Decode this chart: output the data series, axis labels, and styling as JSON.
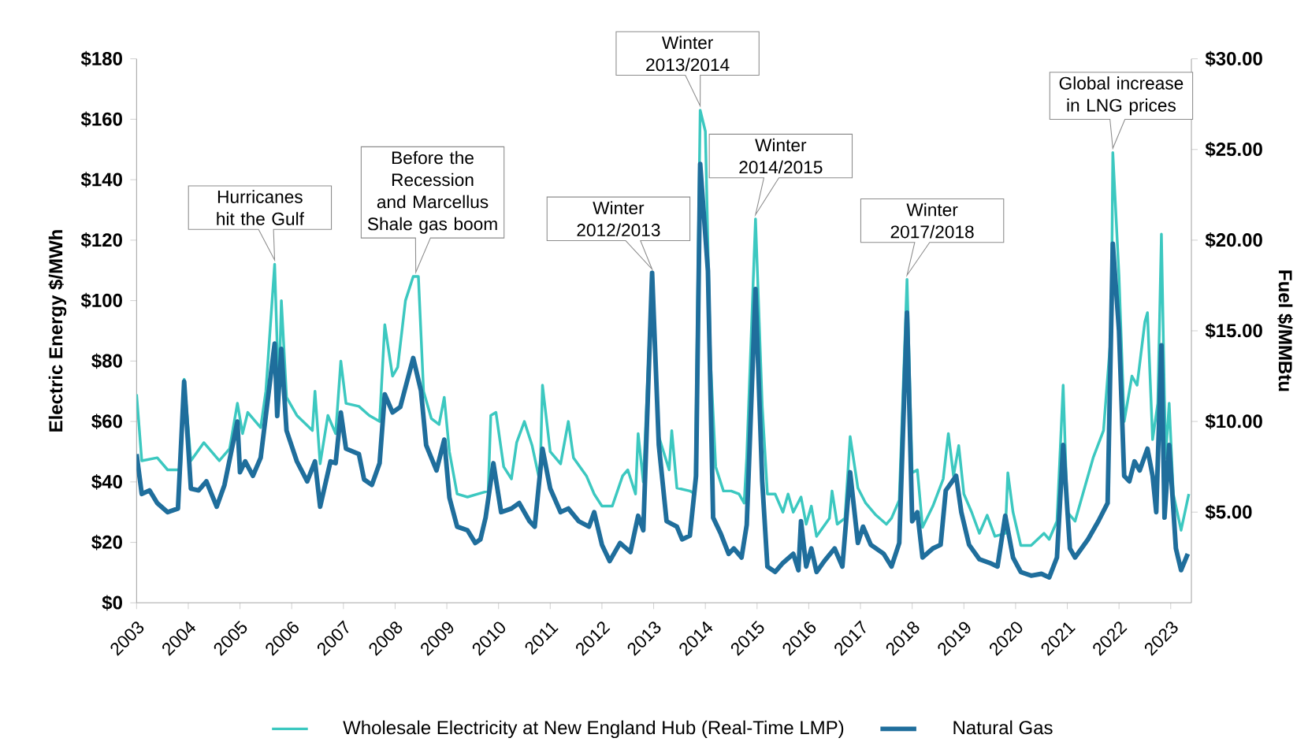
{
  "chart_data": {
    "type": "line",
    "ylabel": "Electric  Energy $/MWh",
    "y2label": "Fuel $/MMBtu",
    "legend": "bottom",
    "xlim": [
      2003,
      2023.4
    ],
    "xticks": [
      2003,
      2004,
      2005,
      2006,
      2007,
      2008,
      2009,
      2010,
      2011,
      2012,
      2013,
      2014,
      2015,
      2016,
      2017,
      2018,
      2019,
      2020,
      2021,
      2022,
      2023
    ],
    "ylim": [
      0,
      180
    ],
    "yticks": [
      {
        "value": 0,
        "label": "$0"
      },
      {
        "value": 20,
        "label": "$20"
      },
      {
        "value": 40,
        "label": "$40"
      },
      {
        "value": 60,
        "label": "$60"
      },
      {
        "value": 80,
        "label": "$80"
      },
      {
        "value": 100,
        "label": "$100"
      },
      {
        "value": 120,
        "label": "$120"
      },
      {
        "value": 140,
        "label": "$140"
      },
      {
        "value": 160,
        "label": "$160"
      },
      {
        "value": 180,
        "label": "$180"
      }
    ],
    "y2lim": [
      0,
      30
    ],
    "y2ticks": [
      {
        "value": 5,
        "label": "$5.00"
      },
      {
        "value": 10,
        "label": "$10.00"
      },
      {
        "value": 15,
        "label": "$15.00"
      },
      {
        "value": 20,
        "label": "$20.00"
      },
      {
        "value": 25,
        "label": "$25.00"
      },
      {
        "value": 30,
        "label": "$30.00"
      }
    ],
    "series": [
      {
        "name": "Wholesale Electricity at New England Hub (Real-Time LMP)",
        "color": "#3cc8c0",
        "x": [
          2003.0,
          2003.1,
          2003.4,
          2003.6,
          2003.85,
          2003.92,
          2004.05,
          2004.3,
          2004.6,
          2004.8,
          2004.95,
          2005.05,
          2005.15,
          2005.4,
          2005.5,
          2005.67,
          2005.75,
          2005.8,
          2005.9,
          2006.1,
          2006.4,
          2006.45,
          2006.55,
          2006.7,
          2006.85,
          2006.95,
          2007.05,
          2007.3,
          2007.5,
          2007.7,
          2007.8,
          2007.95,
          2008.05,
          2008.2,
          2008.35,
          2008.45,
          2008.55,
          2008.7,
          2008.85,
          2008.95,
          2009.05,
          2009.2,
          2009.4,
          2009.6,
          2009.8,
          2009.85,
          2009.95,
          2010.1,
          2010.25,
          2010.35,
          2010.5,
          2010.65,
          2010.8,
          2010.85,
          2011.0,
          2011.2,
          2011.35,
          2011.45,
          2011.7,
          2011.85,
          2012.0,
          2012.2,
          2012.4,
          2012.5,
          2012.65,
          2012.7,
          2012.8,
          2012.97,
          2013.1,
          2013.3,
          2013.35,
          2013.45,
          2013.7,
          2013.8,
          2013.9,
          2014.0,
          2014.1,
          2014.2,
          2014.35,
          2014.5,
          2014.65,
          2014.75,
          2014.8,
          2014.97,
          2015.1,
          2015.2,
          2015.35,
          2015.5,
          2015.6,
          2015.7,
          2015.85,
          2015.95,
          2016.05,
          2016.15,
          2016.4,
          2016.45,
          2016.55,
          2016.7,
          2016.8,
          2016.95,
          2017.1,
          2017.3,
          2017.5,
          2017.6,
          2017.75,
          2017.9,
          2018.0,
          2018.1,
          2018.2,
          2018.4,
          2018.6,
          2018.7,
          2018.8,
          2018.9,
          2019.0,
          2019.15,
          2019.3,
          2019.45,
          2019.6,
          2019.8,
          2019.85,
          2019.95,
          2020.1,
          2020.3,
          2020.55,
          2020.65,
          2020.8,
          2020.92,
          2021.0,
          2021.15,
          2021.3,
          2021.5,
          2021.7,
          2021.85,
          2021.88,
          2022.0,
          2022.1,
          2022.25,
          2022.35,
          2022.5,
          2022.55,
          2022.65,
          2022.75,
          2022.82,
          2022.9,
          2022.97,
          2023.05,
          2023.2,
          2023.35
        ],
        "values": [
          69,
          47,
          48,
          44,
          44,
          74,
          47,
          53,
          47,
          51,
          66,
          56,
          63,
          58,
          70,
          112,
          68,
          100,
          68,
          62,
          57,
          70,
          46,
          62,
          56,
          80,
          66,
          65,
          62,
          60,
          92,
          75,
          78,
          100,
          108,
          108,
          70,
          61,
          59,
          68,
          50,
          36,
          35,
          36,
          37,
          62,
          63,
          45,
          41,
          53,
          60,
          52,
          40,
          72,
          50,
          46,
          60,
          48,
          42,
          36,
          32,
          32,
          42,
          44,
          36,
          56,
          40,
          109,
          55,
          44,
          57,
          38,
          37,
          36,
          163,
          156,
          80,
          45,
          37,
          37,
          36,
          33,
          48,
          127,
          65,
          36,
          36,
          30,
          36,
          30,
          35,
          26,
          32,
          22,
          28,
          37,
          26,
          28,
          55,
          38,
          33,
          29,
          26,
          28,
          34,
          107,
          43,
          44,
          25,
          32,
          41,
          56,
          42,
          52,
          36,
          30,
          23,
          29,
          22,
          23,
          43,
          30,
          19,
          19,
          23,
          21,
          27,
          72,
          30,
          27,
          36,
          48,
          57,
          90,
          149,
          108,
          60,
          75,
          72,
          93,
          96,
          54,
          66,
          122,
          48,
          66,
          36,
          24,
          36
        ]
      },
      {
        "name": "Natural Gas",
        "color": "#1f6e9c",
        "axis": "y2",
        "x": [
          2003.0,
          2003.1,
          2003.25,
          2003.4,
          2003.6,
          2003.8,
          2003.92,
          2004.05,
          2004.2,
          2004.35,
          2004.55,
          2004.7,
          2004.95,
          2005.0,
          2005.1,
          2005.25,
          2005.4,
          2005.67,
          2005.72,
          2005.8,
          2005.9,
          2006.1,
          2006.3,
          2006.45,
          2006.55,
          2006.75,
          2006.85,
          2006.95,
          2007.05,
          2007.3,
          2007.4,
          2007.55,
          2007.7,
          2007.8,
          2007.95,
          2008.1,
          2008.35,
          2008.5,
          2008.6,
          2008.8,
          2008.95,
          2009.05,
          2009.2,
          2009.4,
          2009.55,
          2009.65,
          2009.75,
          2009.9,
          2010.05,
          2010.25,
          2010.4,
          2010.6,
          2010.7,
          2010.85,
          2011.0,
          2011.2,
          2011.35,
          2011.55,
          2011.75,
          2011.85,
          2012.0,
          2012.15,
          2012.35,
          2012.55,
          2012.7,
          2012.8,
          2012.97,
          2013.1,
          2013.25,
          2013.45,
          2013.55,
          2013.7,
          2013.82,
          2013.9,
          2014.05,
          2014.15,
          2014.3,
          2014.45,
          2014.55,
          2014.7,
          2014.8,
          2014.97,
          2015.1,
          2015.2,
          2015.35,
          2015.5,
          2015.7,
          2015.8,
          2015.85,
          2015.95,
          2016.05,
          2016.15,
          2016.3,
          2016.5,
          2016.65,
          2016.8,
          2016.95,
          2017.05,
          2017.2,
          2017.45,
          2017.6,
          2017.75,
          2017.9,
          2018.0,
          2018.1,
          2018.2,
          2018.4,
          2018.55,
          2018.65,
          2018.85,
          2018.95,
          2019.1,
          2019.3,
          2019.5,
          2019.65,
          2019.8,
          2019.95,
          2020.1,
          2020.3,
          2020.5,
          2020.65,
          2020.8,
          2020.92,
          2021.05,
          2021.15,
          2021.4,
          2021.6,
          2021.78,
          2021.88,
          2022.0,
          2022.1,
          2022.2,
          2022.3,
          2022.4,
          2022.55,
          2022.65,
          2022.72,
          2022.82,
          2022.88,
          2022.97,
          2023.1,
          2023.2,
          2023.33
        ],
        "values": [
          8.2,
          6.0,
          6.2,
          5.5,
          5.0,
          5.2,
          12.2,
          6.3,
          6.2,
          6.7,
          5.3,
          6.5,
          10.0,
          7.2,
          7.8,
          7.0,
          8.0,
          14.3,
          10.3,
          14.0,
          9.5,
          7.8,
          6.7,
          7.8,
          5.3,
          7.8,
          7.7,
          10.5,
          8.5,
          8.2,
          6.8,
          6.5,
          7.7,
          11.5,
          10.5,
          10.8,
          13.5,
          11.7,
          8.7,
          7.3,
          9.0,
          5.8,
          4.2,
          4.0,
          3.3,
          3.5,
          4.7,
          7.7,
          5.0,
          5.2,
          5.5,
          4.5,
          4.2,
          8.5,
          6.3,
          5.0,
          5.2,
          4.5,
          4.2,
          5.0,
          3.2,
          2.3,
          3.3,
          2.8,
          4.8,
          4.0,
          18.2,
          8.7,
          4.5,
          4.2,
          3.5,
          3.7,
          7.0,
          24.2,
          18.3,
          4.7,
          3.8,
          2.7,
          3.0,
          2.5,
          4.3,
          17.3,
          6.7,
          2.0,
          1.7,
          2.2,
          2.7,
          1.8,
          4.5,
          2.0,
          3.0,
          1.7,
          2.3,
          3.0,
          2.0,
          7.2,
          3.3,
          4.2,
          3.2,
          2.7,
          2.0,
          3.3,
          16.0,
          4.5,
          5.0,
          2.5,
          3.0,
          3.2,
          6.2,
          7.0,
          5.0,
          3.2,
          2.4,
          2.2,
          2.0,
          4.8,
          2.5,
          1.7,
          1.5,
          1.6,
          1.4,
          2.5,
          8.7,
          3.0,
          2.5,
          3.5,
          4.5,
          5.5,
          19.8,
          15.0,
          7.0,
          6.7,
          7.8,
          7.3,
          8.5,
          7.0,
          5.0,
          14.2,
          4.7,
          8.7,
          3.0,
          1.8,
          2.7
        ]
      }
    ],
    "annotations": [
      {
        "text": "Hurricanes hit the Gulf",
        "x": 2005.67,
        "y": 112
      },
      {
        "text": "Before the Recession and Marcellus Shale gas boom",
        "x": 2008.4,
        "y": 108
      },
      {
        "text": "Winter 2012/2013",
        "x": 2012.97,
        "y": 109
      },
      {
        "text": "Winter 2013/2014",
        "x": 2013.9,
        "y": 163
      },
      {
        "text": "Winter 2014/2015",
        "x": 2014.97,
        "y": 127
      },
      {
        "text": "Winter 2017/2018",
        "x": 2017.9,
        "y": 107
      },
      {
        "text": "Global increase in LNG prices",
        "x": 2021.88,
        "y": 149
      }
    ]
  }
}
